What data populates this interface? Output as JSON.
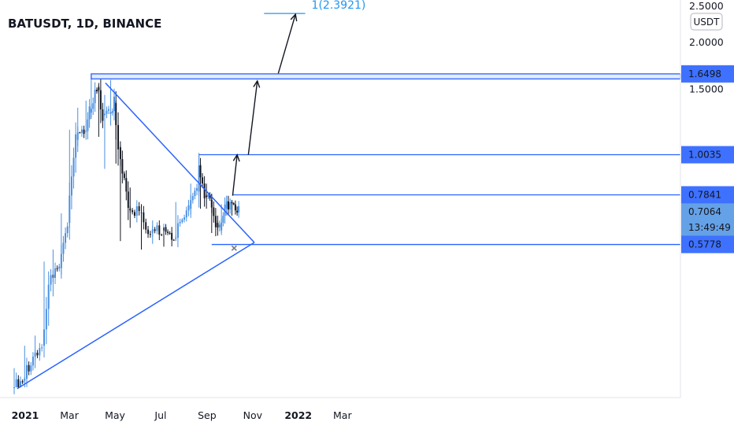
{
  "header": {
    "symbol": "BATUSDT",
    "interval": "1D",
    "exchange": "BINANCE",
    "title": "BATUSDT, 1D, BINANCE"
  },
  "currency_badge": "USDT",
  "target_label": "1(2.3921)",
  "price_tags": [
    {
      "label": "1.6498",
      "value": 1.6498
    },
    {
      "label": "1.0035",
      "value": 1.0035
    },
    {
      "label": "0.7841",
      "value": 0.7841
    },
    {
      "label": "0.7064",
      "value": 0.7064,
      "current": true
    },
    {
      "label": "0.5778",
      "value": 0.5778
    }
  ],
  "countdown": "13:49:49",
  "chart_data": {
    "type": "candlestick",
    "title": "BATUSDT, 1D, BINANCE",
    "x_ticks": [
      "2021",
      "Mar",
      "May",
      "Jul",
      "Sep",
      "Nov",
      "2022",
      "Mar"
    ],
    "y_ticks": [
      {
        "label": "1.5000",
        "value": 1.5
      },
      {
        "label": "2.0000",
        "value": 2.0
      },
      {
        "label": "2.5000",
        "value": 2.5
      }
    ],
    "y_scale": "log",
    "ylim": [
      0.24,
      2.5
    ],
    "candles": [
      {
        "d": "2021-01-01",
        "o": 0.24,
        "h": 0.27,
        "l": 0.23,
        "c": 0.25
      },
      {
        "d": "2021-01-15",
        "o": 0.25,
        "h": 0.31,
        "l": 0.24,
        "c": 0.29
      },
      {
        "d": "2021-01-29",
        "o": 0.29,
        "h": 0.33,
        "l": 0.27,
        "c": 0.31
      },
      {
        "d": "2021-02-10",
        "o": 0.31,
        "h": 0.52,
        "l": 0.3,
        "c": 0.48
      },
      {
        "d": "2021-02-22",
        "o": 0.48,
        "h": 0.56,
        "l": 0.42,
        "c": 0.5
      },
      {
        "d": "2021-03-05",
        "o": 0.5,
        "h": 0.7,
        "l": 0.48,
        "c": 0.66
      },
      {
        "d": "2021-03-16",
        "o": 0.66,
        "h": 1.17,
        "l": 0.64,
        "c": 1.1
      },
      {
        "d": "2021-03-27",
        "o": 1.1,
        "h": 1.34,
        "l": 1.02,
        "c": 1.16
      },
      {
        "d": "2021-04-07",
        "o": 1.16,
        "h": 1.4,
        "l": 1.1,
        "c": 1.3
      },
      {
        "d": "2021-04-14",
        "o": 1.3,
        "h": 1.649,
        "l": 1.25,
        "c": 1.52
      },
      {
        "d": "2021-04-24",
        "o": 1.52,
        "h": 1.56,
        "l": 1.12,
        "c": 1.28
      },
      {
        "d": "2021-05-02",
        "o": 1.28,
        "h": 1.45,
        "l": 0.92,
        "c": 1.3
      },
      {
        "d": "2021-05-10",
        "o": 1.3,
        "h": 1.59,
        "l": 1.2,
        "c": 1.38
      },
      {
        "d": "2021-05-17",
        "o": 1.38,
        "h": 1.4,
        "l": 0.95,
        "c": 1.05
      },
      {
        "d": "2021-05-23",
        "o": 1.05,
        "h": 1.06,
        "l": 0.59,
        "c": 0.72
      },
      {
        "d": "2021-06-05",
        "o": 0.72,
        "h": 0.82,
        "l": 0.64,
        "c": 0.7
      },
      {
        "d": "2021-06-20",
        "o": 0.7,
        "h": 0.74,
        "l": 0.56,
        "c": 0.62
      },
      {
        "d": "2021-07-05",
        "o": 0.62,
        "h": 0.67,
        "l": 0.58,
        "c": 0.63
      },
      {
        "d": "2021-07-20",
        "o": 0.63,
        "h": 0.64,
        "l": 0.57,
        "c": 0.6
      },
      {
        "d": "2021-08-05",
        "o": 0.6,
        "h": 0.75,
        "l": 0.59,
        "c": 0.72
      },
      {
        "d": "2021-08-25",
        "o": 0.72,
        "h": 0.84,
        "l": 0.68,
        "c": 0.8
      },
      {
        "d": "2021-09-05",
        "o": 0.8,
        "h": 1.0035,
        "l": 0.78,
        "c": 0.94
      },
      {
        "d": "2021-09-07",
        "o": 0.94,
        "h": 0.95,
        "l": 0.72,
        "c": 0.78
      },
      {
        "d": "2021-09-15",
        "o": 0.78,
        "h": 0.84,
        "l": 0.72,
        "c": 0.76
      },
      {
        "d": "2021-09-22",
        "o": 0.76,
        "h": 0.79,
        "l": 0.62,
        "c": 0.66
      },
      {
        "d": "2021-09-30",
        "o": 0.66,
        "h": 0.69,
        "l": 0.61,
        "c": 0.63
      },
      {
        "d": "2021-10-05",
        "o": 0.63,
        "h": 0.74,
        "l": 0.62,
        "c": 0.72
      },
      {
        "d": "2021-10-12",
        "o": 0.72,
        "h": 0.78,
        "l": 0.69,
        "c": 0.75
      },
      {
        "d": "2021-10-19",
        "o": 0.75,
        "h": 0.76,
        "l": 0.69,
        "c": 0.71
      },
      {
        "d": "2021-10-26",
        "o": 0.71,
        "h": 0.73,
        "l": 0.69,
        "c": 0.7064
      }
    ],
    "annotations": [
      {
        "type": "zone",
        "from": "2021-04-14",
        "to": "2022-04-01",
        "top": 1.6498,
        "bottom": 1.6
      },
      {
        "type": "level",
        "from": "2021-09-05",
        "to": "2022-04-01",
        "value": 1.0035
      },
      {
        "type": "level",
        "from": "2021-10-20",
        "to": "2022-04-01",
        "value": 0.7841
      },
      {
        "type": "level",
        "from": "2021-09-22",
        "to": "2022-04-01",
        "value": 0.5778
      },
      {
        "type": "trendline",
        "from": [
          "2021-01-05",
          0.238
        ],
        "to": [
          "2021-11-18",
          0.585
        ]
      },
      {
        "type": "trendline",
        "from": [
          "2021-05-03",
          1.56
        ],
        "to": [
          "2021-11-18",
          0.585
        ]
      },
      {
        "type": "target",
        "from": "2021-12-01",
        "to": "2022-01-25",
        "value": 2.3921
      },
      {
        "type": "arrow",
        "from": [
          "2021-10-20",
          0.78
        ],
        "to": [
          "2021-10-26",
          1.003
        ]
      },
      {
        "type": "arrow",
        "from": [
          "2021-11-10",
          1.003
        ],
        "to": [
          "2021-11-22",
          1.58
        ]
      },
      {
        "type": "arrow",
        "from": [
          "2021-12-20",
          1.655
        ],
        "to": [
          "2022-01-12",
          2.38
        ]
      }
    ],
    "up_color": "#4a90e2",
    "down_color": "#131722",
    "drawing_color": "#2962ff"
  }
}
